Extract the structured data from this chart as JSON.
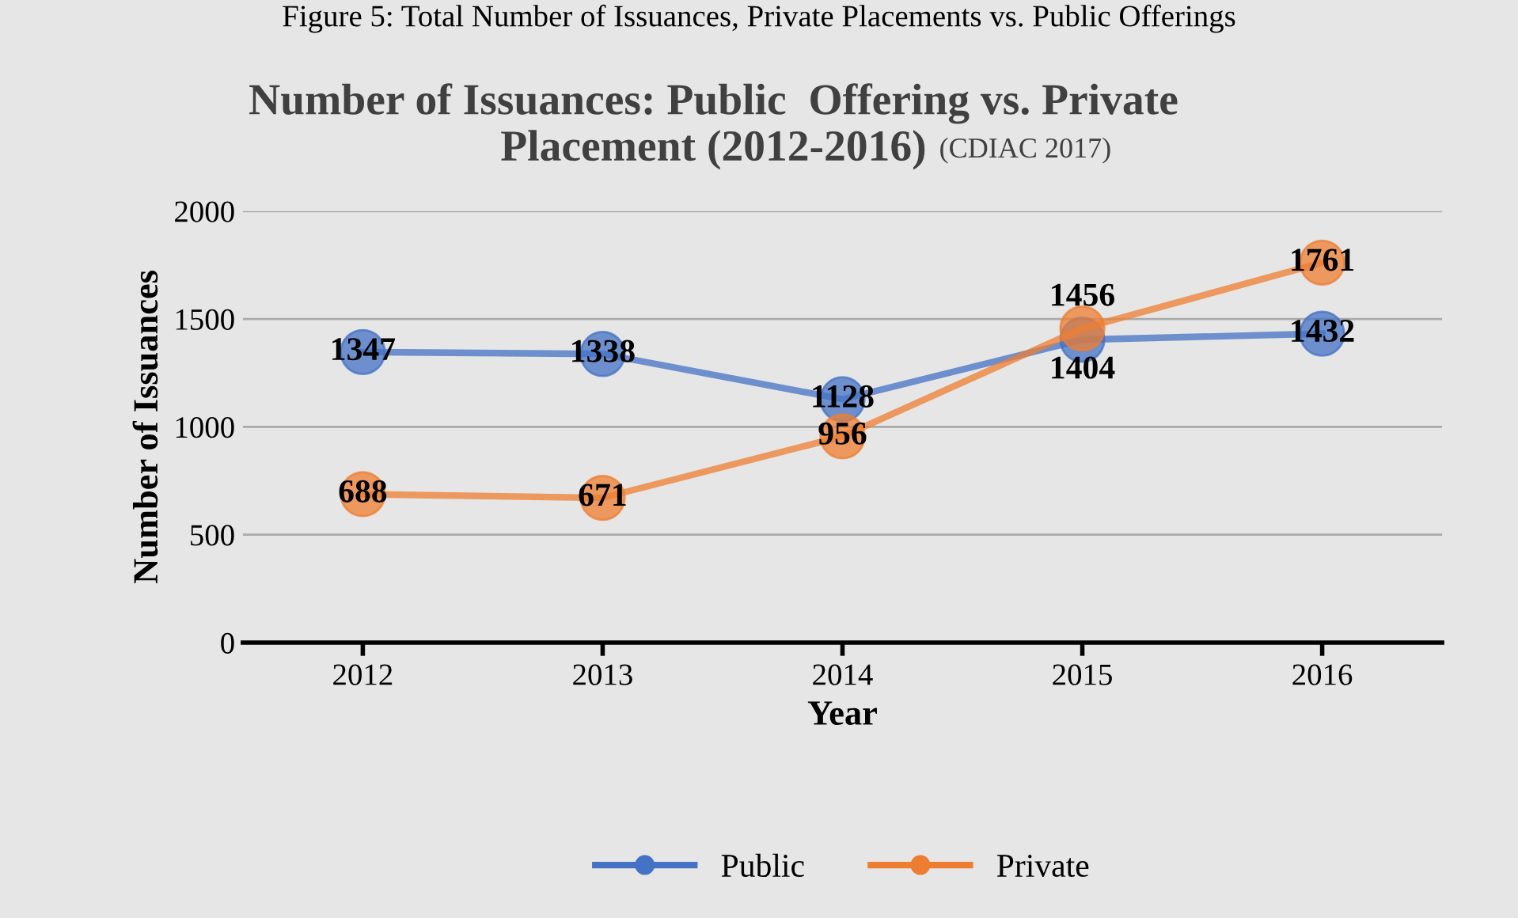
{
  "chart_data": {
    "type": "line",
    "title": "Number of Issuances: Public  Offering vs. Private\nPlacement (2012-2016)",
    "subtitle": "(CDIAC 2017)",
    "xlabel": "Year",
    "ylabel": "Number of Issuances",
    "annotations": [
      "Figure 5: Total Number of Issuances, Private Placements vs. Public Offerings"
    ],
    "categories": [
      "2012",
      "2013",
      "2014",
      "2015",
      "2016"
    ],
    "series": [
      {
        "name": "Public",
        "color": "#4472c4",
        "values": [
          1347,
          1338,
          1128,
          1404,
          1432
        ]
      },
      {
        "name": "Private",
        "color": "#ed7d31",
        "values": [
          688,
          671,
          956,
          1456,
          1761
        ]
      }
    ],
    "ylim": [
      0,
      2000
    ],
    "yticks": [
      0,
      500,
      1000,
      1500,
      2000
    ],
    "grid": "y",
    "legend": "bottom",
    "marker": "circle",
    "line_style": "solid",
    "data_labels": true
  }
}
